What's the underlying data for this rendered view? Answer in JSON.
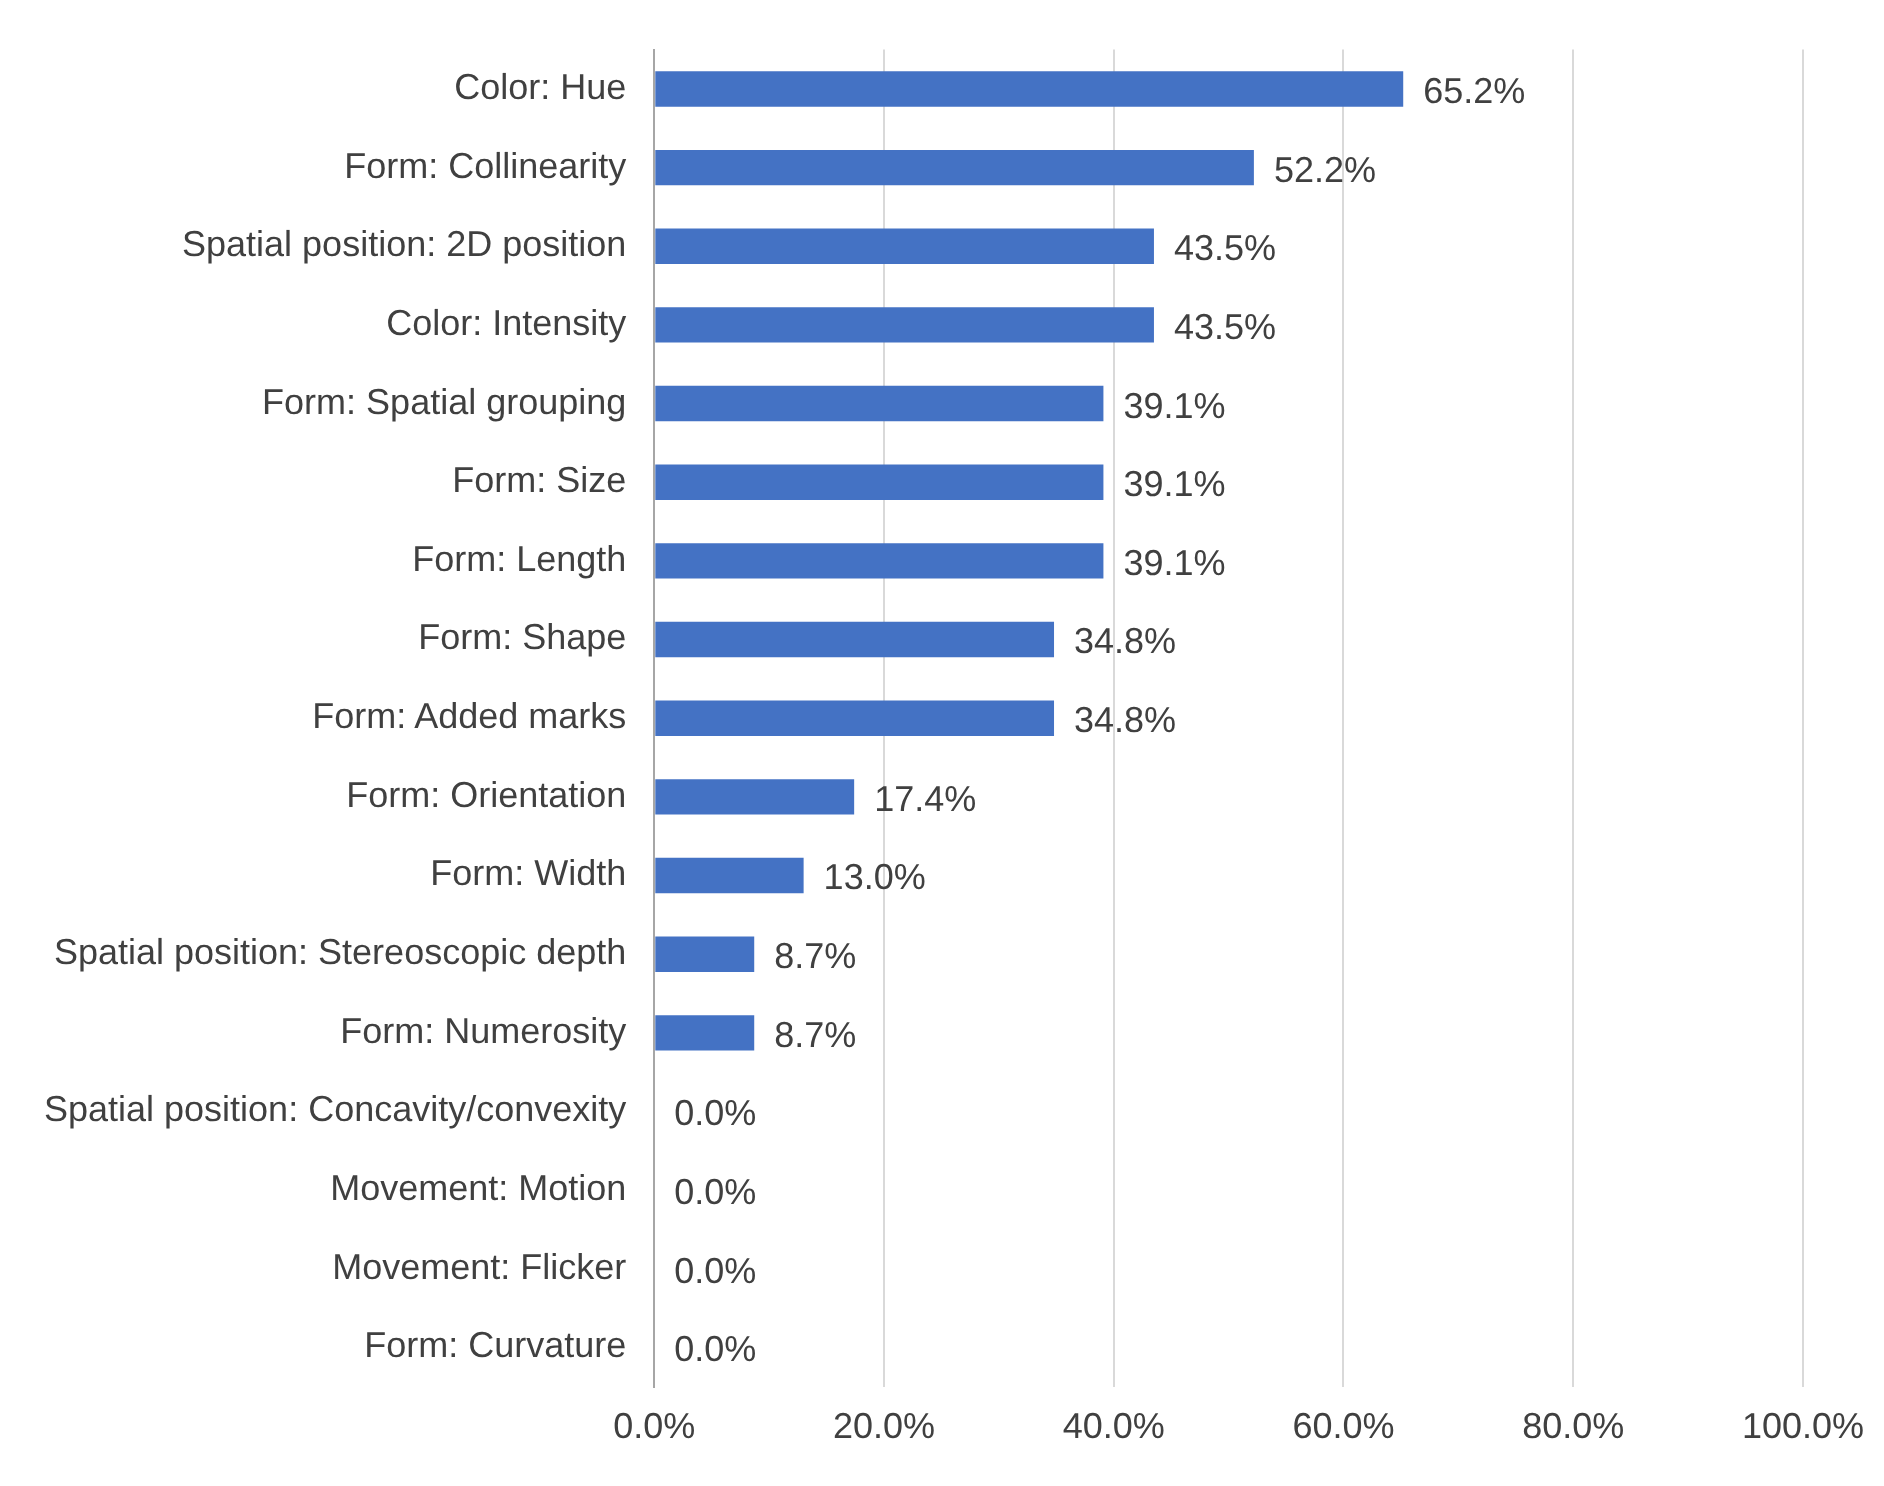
{
  "chart_data": {
    "type": "bar",
    "orientation": "horizontal",
    "categories": [
      "Color: Hue",
      "Form: Collinearity",
      "Spatial position: 2D position",
      "Color: Intensity",
      "Form: Spatial grouping",
      "Form: Size",
      "Form: Length",
      "Form: Shape",
      "Form: Added marks",
      "Form: Orientation",
      "Form: Width",
      "Spatial position: Stereoscopic depth",
      "Form: Numerosity",
      "Spatial position: Concavity/convexity",
      "Movement: Motion",
      "Movement: Flicker",
      "Form: Curvature"
    ],
    "values": [
      65.2,
      52.2,
      43.5,
      43.5,
      39.1,
      39.1,
      39.1,
      34.8,
      34.8,
      17.4,
      13.0,
      8.7,
      8.7,
      0,
      0,
      0,
      0
    ],
    "value_labels": [
      "65.2%",
      "52.2%",
      "43.5%",
      "43.5%",
      "39.1%",
      "39.1%",
      "39.1%",
      "34.8%",
      "34.8%",
      "17.4%",
      "13.0%",
      "8.7%",
      "8.7%",
      "0.0%",
      "0.0%",
      "0.0%",
      "0.0%"
    ],
    "color": "#4472c4",
    "xlim": [
      0,
      100
    ],
    "xticks": [
      {
        "value": 0,
        "label": "0.0%"
      },
      {
        "value": 20,
        "label": "20.0%"
      },
      {
        "value": 40,
        "label": "40.0%"
      },
      {
        "value": 60,
        "label": "60.0%"
      },
      {
        "value": 80,
        "label": "80.0%"
      },
      {
        "value": 100,
        "label": "100.0%"
      }
    ],
    "grid": "x"
  }
}
